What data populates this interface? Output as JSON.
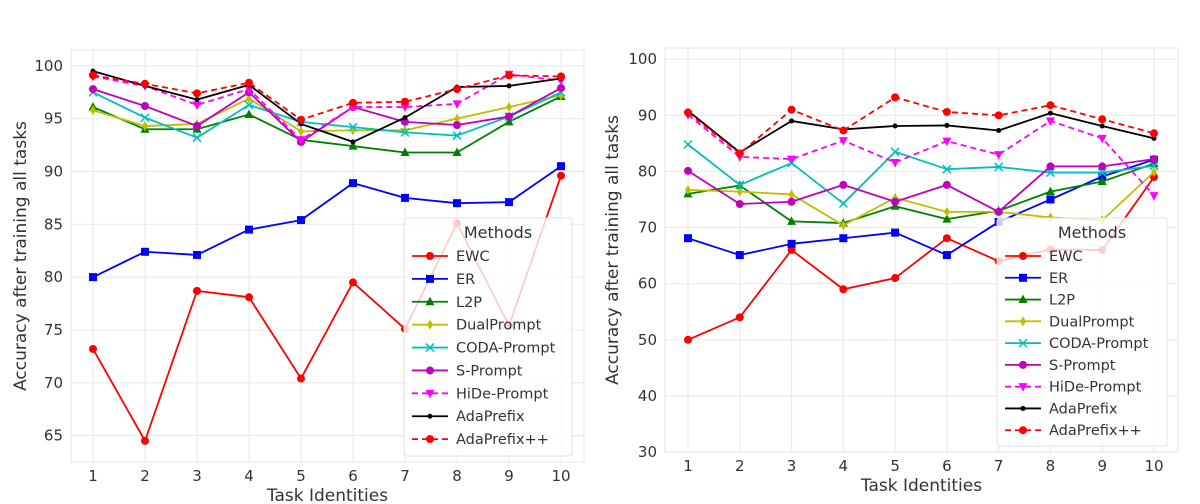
{
  "chart_data": [
    {
      "type": "line",
      "title": "",
      "xlabel": "Task Identities",
      "ylabel": "Accuracy after training all tasks",
      "x": [
        1,
        2,
        3,
        4,
        5,
        6,
        7,
        8,
        9,
        10
      ],
      "ylim": [
        62.5,
        101.5
      ],
      "yticks": [
        65,
        70,
        75,
        80,
        85,
        90,
        95,
        100
      ],
      "grid": true,
      "legend": {
        "title": "Methods",
        "position": "lower-right"
      },
      "series": [
        {
          "name": "EWC",
          "color": "#ff0000",
          "style": "solid",
          "marker": "circle",
          "values": [
            73.2,
            64.5,
            78.7,
            78.1,
            70.4,
            79.5,
            75.1,
            85.1,
            75.4,
            89.6
          ]
        },
        {
          "name": "ER",
          "color": "#0000ff",
          "style": "solid",
          "marker": "square",
          "values": [
            80.0,
            82.4,
            82.1,
            84.5,
            85.4,
            88.9,
            87.5,
            87.0,
            87.1,
            90.5
          ]
        },
        {
          "name": "L2P",
          "color": "#008000",
          "style": "solid",
          "marker": "triangle",
          "values": [
            96.1,
            94.0,
            94.0,
            95.4,
            93.0,
            92.4,
            91.8,
            91.8,
            94.7,
            97.1
          ]
        },
        {
          "name": "DualPrompt",
          "color": "#bfbf00",
          "style": "solid",
          "marker": "diamond",
          "values": [
            95.8,
            94.3,
            94.5,
            96.9,
            93.8,
            93.9,
            93.9,
            95.0,
            96.1,
            97.2
          ]
        },
        {
          "name": "CODA-Prompt",
          "color": "#00bfbf",
          "style": "solid",
          "marker": "x",
          "values": [
            97.5,
            95.1,
            93.2,
            96.3,
            94.7,
            94.2,
            93.7,
            93.4,
            95.2,
            97.5
          ]
        },
        {
          "name": "S-Prompt",
          "color": "#bf00bf",
          "style": "solid",
          "marker": "circle",
          "values": [
            97.8,
            96.2,
            94.3,
            97.5,
            92.8,
            96.1,
            94.7,
            94.4,
            95.2,
            97.9
          ]
        },
        {
          "name": "HiDe-Prompt",
          "color": "#ff00ff",
          "style": "dashed",
          "marker": "triangle-down",
          "values": [
            99.0,
            98.1,
            96.3,
            97.8,
            93.0,
            96.1,
            96.1,
            96.4,
            99.2,
            98.6
          ]
        },
        {
          "name": "AdaPrefix",
          "color": "#000000",
          "style": "solid",
          "marker": "point",
          "values": [
            99.5,
            98.1,
            96.8,
            98.2,
            94.5,
            92.8,
            95.1,
            98.0,
            98.1,
            98.8
          ]
        },
        {
          "name": "AdaPrefix++",
          "color": "#ff0000",
          "style": "dashed",
          "marker": "circle",
          "values": [
            99.1,
            98.3,
            97.4,
            98.4,
            94.9,
            96.5,
            96.6,
            97.8,
            99.1,
            99.0
          ]
        }
      ]
    },
    {
      "type": "line",
      "title": "",
      "xlabel": "Task Identities",
      "ylabel": "Accuracy after training all tasks",
      "x": [
        1,
        2,
        3,
        4,
        5,
        6,
        7,
        8,
        9,
        10
      ],
      "ylim": [
        30,
        102
      ],
      "yticks": [
        30,
        40,
        50,
        60,
        70,
        80,
        90,
        100
      ],
      "grid": true,
      "legend": {
        "title": "Methods",
        "position": "lower-right"
      },
      "series": [
        {
          "name": "EWC",
          "color": "#ff0000",
          "style": "solid",
          "marker": "circle",
          "values": [
            50.0,
            54.0,
            66.0,
            59.0,
            61.0,
            68.1,
            64.0,
            66.1,
            66.0,
            79.0
          ]
        },
        {
          "name": "ER",
          "color": "#0000ff",
          "style": "solid",
          "marker": "square",
          "values": [
            68.1,
            65.1,
            67.1,
            68.1,
            69.1,
            65.1,
            71.0,
            75.0,
            79.1,
            82.1
          ]
        },
        {
          "name": "L2P",
          "color": "#008000",
          "style": "solid",
          "marker": "triangle",
          "values": [
            76.0,
            77.5,
            71.1,
            70.8,
            73.8,
            71.5,
            73.0,
            76.4,
            78.2,
            81.4
          ]
        },
        {
          "name": "DualPrompt",
          "color": "#bfbf00",
          "style": "solid",
          "marker": "diamond",
          "values": [
            76.7,
            76.4,
            75.9,
            70.4,
            75.3,
            72.8,
            72.8,
            71.8,
            71.3,
            79.9
          ]
        },
        {
          "name": "CODA-Prompt",
          "color": "#00bfbf",
          "style": "solid",
          "marker": "x",
          "values": [
            84.8,
            77.6,
            81.5,
            74.3,
            83.5,
            80.4,
            80.8,
            79.8,
            79.8,
            81.0
          ]
        },
        {
          "name": "S-Prompt",
          "color": "#bf00bf",
          "style": "solid",
          "marker": "circle",
          "values": [
            80.1,
            74.2,
            74.6,
            77.6,
            74.6,
            77.6,
            72.8,
            80.9,
            80.9,
            82.2
          ]
        },
        {
          "name": "HiDe-Prompt",
          "color": "#ff00ff",
          "style": "dashed",
          "marker": "triangle-down",
          "values": [
            90.1,
            82.6,
            82.2,
            85.5,
            81.6,
            85.4,
            83.0,
            89.0,
            85.9,
            75.7
          ]
        },
        {
          "name": "AdaPrefix",
          "color": "#000000",
          "style": "solid",
          "marker": "point",
          "values": [
            90.8,
            83.4,
            89.0,
            87.5,
            88.1,
            88.2,
            87.3,
            90.4,
            88.1,
            85.9
          ]
        },
        {
          "name": "AdaPrefix++",
          "color": "#ff0000",
          "style": "dashed",
          "marker": "circle",
          "values": [
            90.5,
            83.2,
            91.0,
            87.3,
            93.2,
            90.6,
            90.0,
            91.8,
            89.3,
            86.8
          ]
        }
      ]
    }
  ]
}
